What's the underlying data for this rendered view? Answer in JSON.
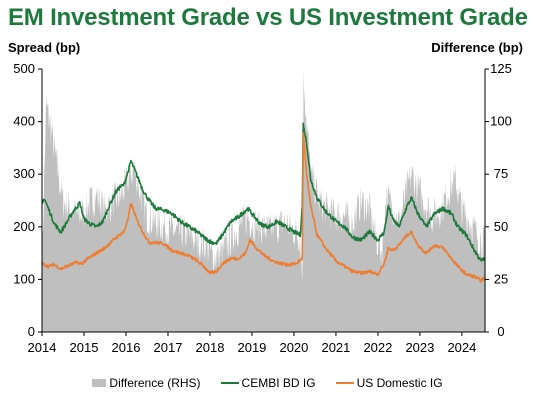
{
  "chart_data": {
    "type": "line",
    "title": "EM Investment Grade vs US Investment Grade",
    "ylabel": "Spread (bp)",
    "y2label": "Difference (bp)",
    "ylim": [
      0,
      500
    ],
    "y2lim": [
      0,
      125
    ],
    "yticks": [
      "0",
      "100",
      "200",
      "300",
      "400",
      "500"
    ],
    "y2ticks": [
      "0",
      "25",
      "50",
      "75",
      "100",
      "125"
    ],
    "xlim": [
      2014.0,
      2024.55
    ],
    "xticks": [
      "2014",
      "2015",
      "2016",
      "2017",
      "2018",
      "2019",
      "2020",
      "2021",
      "2022",
      "2023",
      "2024"
    ],
    "legend_position": "bottom",
    "series": [
      {
        "name": "Difference (RHS)",
        "kind": "area",
        "axis": "right",
        "color": "#bfbfbf",
        "points": [
          [
            2014.0,
            32
          ],
          [
            2014.1,
            108
          ],
          [
            2014.2,
            98
          ],
          [
            2014.35,
            80
          ],
          [
            2014.5,
            62
          ],
          [
            2014.7,
            58
          ],
          [
            2014.9,
            55
          ],
          [
            2015.1,
            60
          ],
          [
            2015.3,
            65
          ],
          [
            2015.5,
            58
          ],
          [
            2015.7,
            62
          ],
          [
            2015.9,
            65
          ],
          [
            2016.1,
            75
          ],
          [
            2016.2,
            78
          ],
          [
            2016.35,
            65
          ],
          [
            2016.5,
            55
          ],
          [
            2016.7,
            52
          ],
          [
            2016.9,
            50
          ],
          [
            2017.1,
            48
          ],
          [
            2017.3,
            47
          ],
          [
            2017.5,
            46
          ],
          [
            2017.7,
            43
          ],
          [
            2017.9,
            42
          ],
          [
            2018.0,
            38
          ],
          [
            2018.1,
            35
          ],
          [
            2018.3,
            38
          ],
          [
            2018.5,
            45
          ],
          [
            2018.7,
            50
          ],
          [
            2018.9,
            55
          ],
          [
            2019.0,
            52
          ],
          [
            2019.2,
            50
          ],
          [
            2019.4,
            48
          ],
          [
            2019.6,
            50
          ],
          [
            2019.8,
            52
          ],
          [
            2020.0,
            48
          ],
          [
            2020.15,
            45
          ],
          [
            2020.2,
            25
          ],
          [
            2020.23,
            122
          ],
          [
            2020.3,
            100
          ],
          [
            2020.4,
            75
          ],
          [
            2020.6,
            62
          ],
          [
            2020.8,
            58
          ],
          [
            2021.0,
            56
          ],
          [
            2021.2,
            55
          ],
          [
            2021.4,
            52
          ],
          [
            2021.6,
            62
          ],
          [
            2021.8,
            58
          ],
          [
            2022.0,
            42
          ],
          [
            2022.1,
            38
          ],
          [
            2022.2,
            65
          ],
          [
            2022.35,
            60
          ],
          [
            2022.5,
            52
          ],
          [
            2022.7,
            68
          ],
          [
            2022.8,
            75
          ],
          [
            2022.9,
            70
          ],
          [
            2023.1,
            62
          ],
          [
            2023.3,
            55
          ],
          [
            2023.5,
            58
          ],
          [
            2023.7,
            68
          ],
          [
            2023.85,
            72
          ],
          [
            2024.0,
            58
          ],
          [
            2024.2,
            52
          ],
          [
            2024.4,
            45
          ],
          [
            2024.55,
            42
          ]
        ]
      },
      {
        "name": "CEMBI BD IG",
        "kind": "line",
        "axis": "left",
        "color": "#1e7a3c",
        "points": [
          [
            2014.0,
            240
          ],
          [
            2014.05,
            255
          ],
          [
            2014.15,
            235
          ],
          [
            2014.3,
            205
          ],
          [
            2014.45,
            190
          ],
          [
            2014.6,
            210
          ],
          [
            2014.75,
            230
          ],
          [
            2014.9,
            245
          ],
          [
            2015.0,
            215
          ],
          [
            2015.15,
            205
          ],
          [
            2015.3,
            200
          ],
          [
            2015.45,
            210
          ],
          [
            2015.6,
            240
          ],
          [
            2015.75,
            265
          ],
          [
            2015.85,
            275
          ],
          [
            2015.95,
            280
          ],
          [
            2016.05,
            305
          ],
          [
            2016.12,
            325
          ],
          [
            2016.25,
            300
          ],
          [
            2016.4,
            270
          ],
          [
            2016.55,
            250
          ],
          [
            2016.7,
            235
          ],
          [
            2016.9,
            232
          ],
          [
            2017.1,
            225
          ],
          [
            2017.3,
            210
          ],
          [
            2017.5,
            200
          ],
          [
            2017.7,
            190
          ],
          [
            2017.85,
            180
          ],
          [
            2018.0,
            172
          ],
          [
            2018.15,
            168
          ],
          [
            2018.3,
            185
          ],
          [
            2018.5,
            210
          ],
          [
            2018.7,
            220
          ],
          [
            2018.9,
            235
          ],
          [
            2019.0,
            225
          ],
          [
            2019.2,
            205
          ],
          [
            2019.4,
            200
          ],
          [
            2019.6,
            210
          ],
          [
            2019.8,
            200
          ],
          [
            2020.0,
            190
          ],
          [
            2020.15,
            185
          ],
          [
            2020.2,
            240
          ],
          [
            2020.22,
            395
          ],
          [
            2020.3,
            360
          ],
          [
            2020.4,
            290
          ],
          [
            2020.55,
            255
          ],
          [
            2020.75,
            230
          ],
          [
            2021.0,
            210
          ],
          [
            2021.2,
            200
          ],
          [
            2021.4,
            180
          ],
          [
            2021.6,
            175
          ],
          [
            2021.8,
            190
          ],
          [
            2022.0,
            175
          ],
          [
            2022.15,
            190
          ],
          [
            2022.25,
            240
          ],
          [
            2022.35,
            215
          ],
          [
            2022.5,
            200
          ],
          [
            2022.7,
            240
          ],
          [
            2022.8,
            255
          ],
          [
            2022.95,
            225
          ],
          [
            2023.15,
            200
          ],
          [
            2023.35,
            225
          ],
          [
            2023.55,
            235
          ],
          [
            2023.75,
            225
          ],
          [
            2023.9,
            200
          ],
          [
            2024.1,
            185
          ],
          [
            2024.3,
            155
          ],
          [
            2024.45,
            135
          ],
          [
            2024.55,
            140
          ]
        ]
      },
      {
        "name": "US Domestic IG",
        "kind": "line",
        "axis": "left",
        "color": "#ed7d31",
        "points": [
          [
            2014.0,
            130
          ],
          [
            2014.15,
            125
          ],
          [
            2014.3,
            128
          ],
          [
            2014.45,
            120
          ],
          [
            2014.6,
            125
          ],
          [
            2014.8,
            132
          ],
          [
            2014.95,
            130
          ],
          [
            2015.1,
            140
          ],
          [
            2015.3,
            150
          ],
          [
            2015.5,
            160
          ],
          [
            2015.7,
            175
          ],
          [
            2015.85,
            185
          ],
          [
            2015.95,
            190
          ],
          [
            2016.05,
            215
          ],
          [
            2016.12,
            245
          ],
          [
            2016.25,
            215
          ],
          [
            2016.4,
            190
          ],
          [
            2016.55,
            170
          ],
          [
            2016.7,
            170
          ],
          [
            2016.9,
            168
          ],
          [
            2017.1,
            155
          ],
          [
            2017.3,
            150
          ],
          [
            2017.5,
            145
          ],
          [
            2017.7,
            135
          ],
          [
            2017.85,
            125
          ],
          [
            2018.0,
            112
          ],
          [
            2018.15,
            115
          ],
          [
            2018.3,
            130
          ],
          [
            2018.5,
            140
          ],
          [
            2018.7,
            140
          ],
          [
            2018.85,
            150
          ],
          [
            2018.95,
            175
          ],
          [
            2019.1,
            160
          ],
          [
            2019.3,
            145
          ],
          [
            2019.5,
            135
          ],
          [
            2019.7,
            130
          ],
          [
            2019.9,
            128
          ],
          [
            2020.05,
            130
          ],
          [
            2020.2,
            140
          ],
          [
            2020.22,
            380
          ],
          [
            2020.3,
            300
          ],
          [
            2020.4,
            240
          ],
          [
            2020.55,
            185
          ],
          [
            2020.75,
            160
          ],
          [
            2021.0,
            135
          ],
          [
            2021.2,
            125
          ],
          [
            2021.4,
            115
          ],
          [
            2021.6,
            112
          ],
          [
            2021.8,
            115
          ],
          [
            2022.0,
            110
          ],
          [
            2022.15,
            130
          ],
          [
            2022.25,
            160
          ],
          [
            2022.35,
            155
          ],
          [
            2022.5,
            165
          ],
          [
            2022.7,
            185
          ],
          [
            2022.8,
            190
          ],
          [
            2022.95,
            165
          ],
          [
            2023.15,
            150
          ],
          [
            2023.35,
            165
          ],
          [
            2023.55,
            160
          ],
          [
            2023.75,
            140
          ],
          [
            2023.9,
            125
          ],
          [
            2024.1,
            110
          ],
          [
            2024.3,
            105
          ],
          [
            2024.45,
            98
          ],
          [
            2024.55,
            102
          ]
        ]
      }
    ]
  }
}
